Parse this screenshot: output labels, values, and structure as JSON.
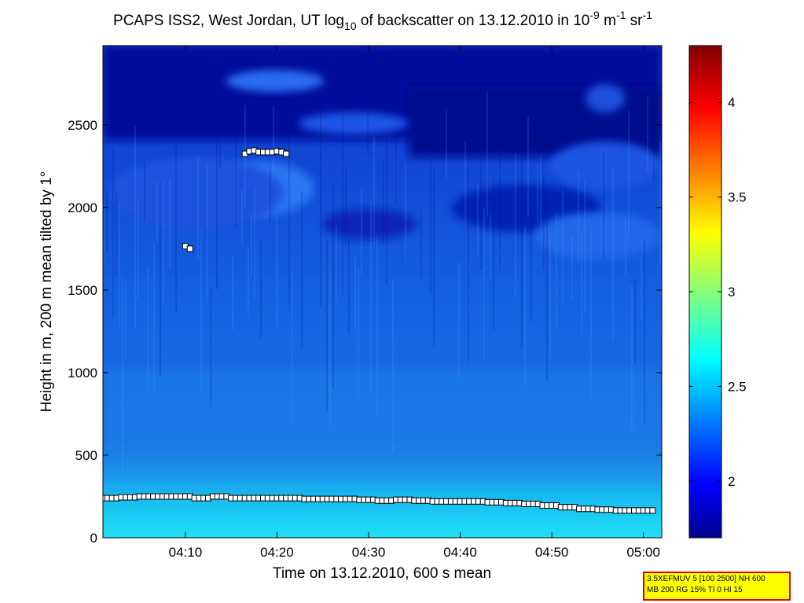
{
  "title": {
    "pre": "PCAPS ISS2, West Jordan, UT log",
    "sub": "10",
    "mid": " of backscatter on 13.12.2010 in 10",
    "sup1": "-9",
    "mid2": " m",
    "sup2": "-1",
    "mid3": " sr",
    "sup3": "-1"
  },
  "info_box": {
    "line1": "3.5XEFMUV 5 [100 2500] NH 600",
    "line2": "MB 200 RG 15% TI 0 HI 15"
  },
  "chart_data": {
    "type": "heatmap",
    "xlabel": "Time on 13.12.2010, 600 s mean",
    "ylabel": "Height in m, 200 m mean tilted by 1°",
    "x_range": [
      "04:01",
      "05:02"
    ],
    "x_ticks": [
      "04:10",
      "04:20",
      "04:30",
      "04:40",
      "04:50",
      "05:00"
    ],
    "y_range": [
      0,
      2980
    ],
    "y_ticks": [
      0,
      500,
      1000,
      1500,
      2000,
      2500
    ],
    "colorbar": {
      "colormap": "jet",
      "range": [
        1.7,
        4.3
      ],
      "ticks": [
        2,
        2.5,
        3,
        3.5,
        4
      ]
    },
    "mixing_layer_height": {
      "marker": "square",
      "points": [
        [
          "04:01",
          240
        ],
        [
          "04:03",
          245
        ],
        [
          "04:05",
          250
        ],
        [
          "04:07",
          250
        ],
        [
          "04:09",
          250
        ],
        [
          "04:11",
          240
        ],
        [
          "04:13",
          250
        ],
        [
          "04:15",
          240
        ],
        [
          "04:17",
          240
        ],
        [
          "04:19",
          240
        ],
        [
          "04:21",
          240
        ],
        [
          "04:23",
          235
        ],
        [
          "04:25",
          235
        ],
        [
          "04:27",
          235
        ],
        [
          "04:29",
          230
        ],
        [
          "04:31",
          225
        ],
        [
          "04:33",
          230
        ],
        [
          "04:35",
          225
        ],
        [
          "04:37",
          220
        ],
        [
          "04:39",
          220
        ],
        [
          "04:41",
          220
        ],
        [
          "04:43",
          215
        ],
        [
          "04:45",
          210
        ],
        [
          "04:47",
          205
        ],
        [
          "04:49",
          195
        ],
        [
          "04:51",
          185
        ],
        [
          "04:53",
          175
        ],
        [
          "04:55",
          170
        ],
        [
          "04:57",
          165
        ],
        [
          "04:59",
          165
        ],
        [
          "05:01",
          165
        ]
      ]
    },
    "cloud_base_points": {
      "marker": "square",
      "points": [
        [
          "04:10",
          1765
        ],
        [
          "04:10.5",
          1750
        ],
        [
          "04:16.5",
          2325
        ],
        [
          "04:17",
          2340
        ],
        [
          "04:17.5",
          2345
        ],
        [
          "04:18",
          2335
        ],
        [
          "04:18.5",
          2335
        ],
        [
          "04:19",
          2335
        ],
        [
          "04:19.5",
          2335
        ],
        [
          "04:20",
          2340
        ],
        [
          "04:20.5",
          2335
        ],
        [
          "04:21",
          2325
        ]
      ]
    }
  }
}
